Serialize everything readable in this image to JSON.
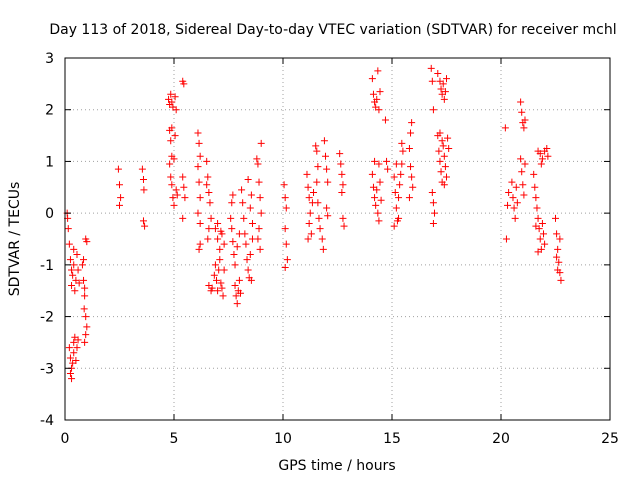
{
  "chart_data": {
    "type": "scatter",
    "title": "Day 113 of 2018, Sidereal Day-to-day VTEC variation (SDTVAR) for receiver mchl",
    "xlabel": "GPS time / hours",
    "ylabel": "SDTVAR / TECUs",
    "xlim": [
      0,
      25
    ],
    "ylim": [
      -4,
      3
    ],
    "xticks": [
      "0",
      "5",
      "10",
      "15",
      "20",
      "25"
    ],
    "yticks": [
      "-4",
      "-3",
      "-2",
      "-1",
      "0",
      "1",
      "2",
      "3"
    ],
    "grid": true,
    "marker": "+",
    "marker_color": "#ff0000",
    "series": [
      {
        "name": "SDTVAR",
        "points": [
          [
            0.1,
            0.0
          ],
          [
            0.12,
            -0.1
          ],
          [
            0.15,
            -0.3
          ],
          [
            0.2,
            -0.6
          ],
          [
            0.25,
            -0.9
          ],
          [
            0.3,
            -1.1
          ],
          [
            0.3,
            -1.4
          ],
          [
            0.35,
            -1.2
          ],
          [
            0.4,
            -1.0
          ],
          [
            0.4,
            -0.7
          ],
          [
            0.45,
            -1.5
          ],
          [
            0.5,
            -1.3
          ],
          [
            0.55,
            -0.8
          ],
          [
            0.6,
            -1.1
          ],
          [
            0.65,
            -1.35
          ],
          [
            0.2,
            -2.6
          ],
          [
            0.25,
            -2.8
          ],
          [
            0.3,
            -3.0
          ],
          [
            0.3,
            -3.2
          ],
          [
            0.35,
            -2.9
          ],
          [
            0.4,
            -2.7
          ],
          [
            0.4,
            -2.5
          ],
          [
            0.45,
            -2.4
          ],
          [
            0.5,
            -2.85
          ],
          [
            0.55,
            -2.6
          ],
          [
            0.6,
            -2.45
          ],
          [
            0.25,
            -3.1
          ],
          [
            0.8,
            -1.0
          ],
          [
            0.85,
            -1.3
          ],
          [
            0.9,
            -1.6
          ],
          [
            0.95,
            -2.0
          ],
          [
            1.0,
            -2.2
          ],
          [
            0.9,
            -1.45
          ],
          [
            0.85,
            -0.9
          ],
          [
            0.95,
            -0.5
          ],
          [
            0.9,
            -2.5
          ],
          [
            0.95,
            -2.35
          ],
          [
            1.0,
            -0.55
          ],
          [
            0.88,
            -1.85
          ],
          [
            2.45,
            0.85
          ],
          [
            2.5,
            0.55
          ],
          [
            2.55,
            0.3
          ],
          [
            2.5,
            0.15
          ],
          [
            3.55,
            0.85
          ],
          [
            3.6,
            0.65
          ],
          [
            3.62,
            0.45
          ],
          [
            3.6,
            -0.15
          ],
          [
            3.65,
            -0.25
          ],
          [
            4.75,
            2.2
          ],
          [
            4.8,
            2.1
          ],
          [
            4.85,
            2.3
          ],
          [
            4.9,
            2.15
          ],
          [
            4.95,
            2.05
          ],
          [
            5.05,
            2.25
          ],
          [
            5.1,
            2.0
          ],
          [
            4.8,
            1.6
          ],
          [
            4.85,
            1.4
          ],
          [
            4.9,
            1.1
          ],
          [
            4.8,
            0.95
          ],
          [
            4.85,
            0.7
          ],
          [
            4.9,
            0.55
          ],
          [
            4.95,
            0.3
          ],
          [
            5.0,
            0.15
          ],
          [
            5.1,
            0.45
          ],
          [
            5.05,
            1.5
          ],
          [
            5.0,
            1.05
          ],
          [
            5.15,
            0.35
          ],
          [
            4.9,
            1.65
          ],
          [
            5.4,
            2.55
          ],
          [
            5.45,
            2.5
          ],
          [
            5.4,
            0.7
          ],
          [
            5.45,
            0.5
          ],
          [
            5.5,
            0.3
          ],
          [
            5.4,
            -0.1
          ],
          [
            6.1,
            1.55
          ],
          [
            6.15,
            1.35
          ],
          [
            6.2,
            1.1
          ],
          [
            6.15,
            0.6
          ],
          [
            6.2,
            0.3
          ],
          [
            6.1,
            0.0
          ],
          [
            6.2,
            -0.2
          ],
          [
            6.15,
            -0.7
          ],
          [
            6.2,
            -0.6
          ],
          [
            6.1,
            0.9
          ],
          [
            6.5,
            1.0
          ],
          [
            6.55,
            0.7
          ],
          [
            6.6,
            0.4
          ],
          [
            6.65,
            0.2
          ],
          [
            6.7,
            -0.1
          ],
          [
            6.6,
            -0.3
          ],
          [
            6.55,
            -0.5
          ],
          [
            6.5,
            0.55
          ],
          [
            6.6,
            -1.4
          ],
          [
            6.7,
            -1.5
          ],
          [
            6.75,
            -1.45
          ],
          [
            6.85,
            -1.2
          ],
          [
            6.9,
            -1.0
          ],
          [
            6.95,
            -1.3
          ],
          [
            7.0,
            -1.5
          ],
          [
            7.05,
            -1.1
          ],
          [
            7.1,
            -0.9
          ],
          [
            7.15,
            -1.35
          ],
          [
            7.2,
            -1.45
          ],
          [
            7.25,
            -1.6
          ],
          [
            7.3,
            -1.1
          ],
          [
            6.9,
            -0.3
          ],
          [
            7.0,
            -0.5
          ],
          [
            7.1,
            -0.7
          ],
          [
            7.2,
            -0.4
          ],
          [
            7.3,
            -0.6
          ],
          [
            7.0,
            -0.2
          ],
          [
            7.15,
            -0.35
          ],
          [
            7.6,
            -0.1
          ],
          [
            7.65,
            -0.3
          ],
          [
            7.7,
            -0.55
          ],
          [
            7.75,
            -0.8
          ],
          [
            7.8,
            -1.0
          ],
          [
            7.65,
            0.2
          ],
          [
            7.7,
            0.35
          ],
          [
            7.8,
            -1.4
          ],
          [
            7.85,
            -1.6
          ],
          [
            7.9,
            -1.75
          ],
          [
            7.95,
            -1.5
          ],
          [
            8.0,
            -1.3
          ],
          [
            8.05,
            -1.55
          ],
          [
            8.0,
            -0.4
          ],
          [
            7.9,
            -0.65
          ],
          [
            8.1,
            0.45
          ],
          [
            8.15,
            0.2
          ],
          [
            8.2,
            -0.1
          ],
          [
            8.25,
            -0.4
          ],
          [
            8.3,
            -0.6
          ],
          [
            8.35,
            -0.9
          ],
          [
            8.4,
            -1.1
          ],
          [
            8.45,
            -1.25
          ],
          [
            8.5,
            -0.8
          ],
          [
            8.5,
            0.1
          ],
          [
            8.55,
            0.35
          ],
          [
            8.6,
            -0.2
          ],
          [
            8.6,
            -0.5
          ],
          [
            8.55,
            -1.3
          ],
          [
            8.4,
            0.65
          ],
          [
            8.8,
            1.05
          ],
          [
            8.85,
            0.95
          ],
          [
            8.9,
            0.6
          ],
          [
            8.95,
            0.3
          ],
          [
            9.0,
            0.0
          ],
          [
            8.9,
            -0.3
          ],
          [
            8.85,
            -0.5
          ],
          [
            8.95,
            -0.7
          ],
          [
            9.0,
            1.35
          ],
          [
            10.05,
            0.55
          ],
          [
            10.1,
            0.3
          ],
          [
            10.15,
            0.1
          ],
          [
            10.1,
            -0.3
          ],
          [
            10.15,
            -0.6
          ],
          [
            10.2,
            -0.9
          ],
          [
            10.1,
            -1.05
          ],
          [
            11.1,
            0.75
          ],
          [
            11.15,
            0.5
          ],
          [
            11.2,
            0.3
          ],
          [
            11.25,
            0.0
          ],
          [
            11.2,
            -0.2
          ],
          [
            11.3,
            -0.4
          ],
          [
            11.35,
            0.2
          ],
          [
            11.15,
            -0.5
          ],
          [
            11.4,
            0.4
          ],
          [
            11.5,
            1.3
          ],
          [
            11.55,
            1.2
          ],
          [
            11.6,
            0.9
          ],
          [
            11.55,
            0.6
          ],
          [
            11.6,
            0.2
          ],
          [
            11.65,
            -0.1
          ],
          [
            11.7,
            -0.3
          ],
          [
            11.8,
            -0.5
          ],
          [
            11.85,
            -0.7
          ],
          [
            11.9,
            1.4
          ],
          [
            11.95,
            1.1
          ],
          [
            12.0,
            0.85
          ],
          [
            12.05,
            0.6
          ],
          [
            12.0,
            0.1
          ],
          [
            12.05,
            -0.05
          ],
          [
            12.6,
            1.15
          ],
          [
            12.65,
            0.95
          ],
          [
            12.7,
            0.75
          ],
          [
            12.75,
            0.55
          ],
          [
            12.7,
            0.4
          ],
          [
            12.75,
            -0.1
          ],
          [
            12.8,
            -0.25
          ],
          [
            14.1,
            2.6
          ],
          [
            14.15,
            2.3
          ],
          [
            14.2,
            2.15
          ],
          [
            14.25,
            2.05
          ],
          [
            14.3,
            2.2
          ],
          [
            14.35,
            2.75
          ],
          [
            14.4,
            2.0
          ],
          [
            14.45,
            2.35
          ],
          [
            14.1,
            0.75
          ],
          [
            14.15,
            0.5
          ],
          [
            14.2,
            0.3
          ],
          [
            14.25,
            0.15
          ],
          [
            14.3,
            0.45
          ],
          [
            14.35,
            0.0
          ],
          [
            14.4,
            -0.15
          ],
          [
            14.45,
            0.6
          ],
          [
            14.2,
            1.0
          ],
          [
            14.4,
            0.95
          ],
          [
            14.5,
            0.25
          ],
          [
            14.75,
            1.0
          ],
          [
            14.8,
            0.85
          ],
          [
            14.7,
            1.8
          ],
          [
            15.1,
            0.7
          ],
          [
            15.15,
            0.4
          ],
          [
            15.2,
            0.1
          ],
          [
            15.25,
            -0.15
          ],
          [
            15.3,
            0.3
          ],
          [
            15.35,
            0.55
          ],
          [
            15.4,
            0.75
          ],
          [
            15.45,
            0.95
          ],
          [
            15.5,
            1.2
          ],
          [
            15.45,
            1.35
          ],
          [
            15.2,
            0.95
          ],
          [
            15.1,
            -0.25
          ],
          [
            15.3,
            -0.1
          ],
          [
            15.8,
            1.25
          ],
          [
            15.85,
            1.55
          ],
          [
            15.9,
            1.75
          ],
          [
            15.85,
            0.9
          ],
          [
            15.9,
            0.7
          ],
          [
            15.95,
            0.5
          ],
          [
            15.8,
            0.3
          ],
          [
            16.8,
            2.8
          ],
          [
            16.85,
            2.55
          ],
          [
            16.9,
            2.0
          ],
          [
            16.85,
            0.4
          ],
          [
            16.9,
            0.2
          ],
          [
            16.95,
            0.0
          ],
          [
            16.9,
            -0.2
          ],
          [
            17.1,
            2.7
          ],
          [
            17.2,
            2.55
          ],
          [
            17.25,
            2.4
          ],
          [
            17.3,
            2.3
          ],
          [
            17.35,
            2.5
          ],
          [
            17.4,
            2.2
          ],
          [
            17.45,
            2.35
          ],
          [
            17.5,
            2.6
          ],
          [
            17.1,
            1.5
          ],
          [
            17.15,
            1.2
          ],
          [
            17.2,
            1.0
          ],
          [
            17.25,
            0.8
          ],
          [
            17.3,
            0.6
          ],
          [
            17.35,
            1.3
          ],
          [
            17.4,
            1.1
          ],
          [
            17.45,
            0.9
          ],
          [
            17.5,
            0.7
          ],
          [
            17.55,
            1.45
          ],
          [
            17.6,
            1.25
          ],
          [
            17.2,
            1.55
          ],
          [
            17.3,
            1.4
          ],
          [
            17.4,
            0.55
          ],
          [
            20.2,
            1.65
          ],
          [
            20.25,
            -0.5
          ],
          [
            20.3,
            0.15
          ],
          [
            20.35,
            0.4
          ],
          [
            20.5,
            0.6
          ],
          [
            20.55,
            0.3
          ],
          [
            20.6,
            0.1
          ],
          [
            20.65,
            -0.1
          ],
          [
            20.7,
            0.5
          ],
          [
            20.75,
            0.2
          ],
          [
            20.9,
            2.15
          ],
          [
            20.95,
            1.95
          ],
          [
            21.0,
            1.75
          ],
          [
            21.05,
            1.65
          ],
          [
            21.1,
            1.8
          ],
          [
            20.9,
            1.05
          ],
          [
            20.95,
            0.8
          ],
          [
            21.0,
            0.55
          ],
          [
            21.05,
            0.35
          ],
          [
            21.1,
            0.95
          ],
          [
            21.5,
            0.75
          ],
          [
            21.55,
            0.5
          ],
          [
            21.6,
            0.3
          ],
          [
            21.65,
            0.1
          ],
          [
            21.7,
            -0.1
          ],
          [
            21.75,
            -0.3
          ],
          [
            21.8,
            -0.5
          ],
          [
            21.85,
            -0.7
          ],
          [
            21.9,
            -0.2
          ],
          [
            21.95,
            -0.4
          ],
          [
            22.0,
            -0.6
          ],
          [
            21.6,
            -0.25
          ],
          [
            21.7,
            -0.75
          ],
          [
            21.7,
            1.2
          ],
          [
            21.8,
            1.15
          ],
          [
            21.9,
            1.05
          ],
          [
            22.0,
            1.2
          ],
          [
            22.1,
            1.25
          ],
          [
            22.15,
            1.1
          ],
          [
            21.85,
            0.95
          ],
          [
            22.5,
            -0.1
          ],
          [
            22.55,
            -0.4
          ],
          [
            22.6,
            -0.7
          ],
          [
            22.65,
            -0.95
          ],
          [
            22.7,
            -1.15
          ],
          [
            22.75,
            -1.3
          ],
          [
            22.6,
            -1.1
          ],
          [
            22.55,
            -0.85
          ],
          [
            22.7,
            -0.5
          ]
        ]
      }
    ]
  }
}
